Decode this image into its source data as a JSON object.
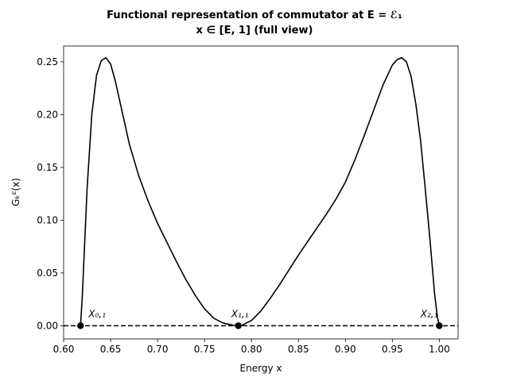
{
  "chart_data": {
    "type": "line",
    "title": "Functional representation of commutator at E = ℰ₁",
    "subtitle": "x ∈ [E, 1] (full view)",
    "xlabel": "Energy x",
    "ylabel": "Gₖᴱ(x)",
    "xlim": [
      0.6,
      1.02
    ],
    "ylim": [
      -0.0125,
      0.265
    ],
    "x_ticks": [
      0.6,
      0.65,
      0.7,
      0.75,
      0.8,
      0.85,
      0.9,
      0.95,
      1.0
    ],
    "x_tick_labels": [
      "0.60",
      "0.65",
      "0.70",
      "0.75",
      "0.80",
      "0.85",
      "0.90",
      "0.95",
      "1.00"
    ],
    "y_ticks": [
      0.0,
      0.05,
      0.1,
      0.15,
      0.2,
      0.25
    ],
    "y_tick_labels": [
      "0.00",
      "0.05",
      "0.10",
      "0.15",
      "0.20",
      "0.25"
    ],
    "grid": false,
    "series": [
      {
        "color": "#000000",
        "style": "solid",
        "x": [
          0.618,
          0.62,
          0.625,
          0.63,
          0.635,
          0.64,
          0.645,
          0.65,
          0.655,
          0.66,
          0.665,
          0.67,
          0.68,
          0.69,
          0.7,
          0.71,
          0.72,
          0.73,
          0.74,
          0.75,
          0.76,
          0.77,
          0.78,
          0.786,
          0.79,
          0.8,
          0.81,
          0.82,
          0.83,
          0.84,
          0.85,
          0.86,
          0.87,
          0.88,
          0.89,
          0.9,
          0.91,
          0.92,
          0.93,
          0.94,
          0.95,
          0.955,
          0.96,
          0.965,
          0.97,
          0.975,
          0.98,
          0.985,
          0.99,
          0.995,
          0.998,
          1.0
        ],
        "y": [
          0.0,
          0.03,
          0.13,
          0.2,
          0.237,
          0.251,
          0.254,
          0.248,
          0.232,
          0.212,
          0.192,
          0.172,
          0.142,
          0.118,
          0.097,
          0.079,
          0.061,
          0.044,
          0.029,
          0.016,
          0.007,
          0.0025,
          0.0006,
          0.0,
          0.0005,
          0.005,
          0.014,
          0.026,
          0.039,
          0.053,
          0.067,
          0.08,
          0.093,
          0.106,
          0.12,
          0.136,
          0.157,
          0.18,
          0.204,
          0.228,
          0.247,
          0.252,
          0.254,
          0.25,
          0.236,
          0.21,
          0.176,
          0.13,
          0.082,
          0.03,
          0.008,
          0.0
        ]
      },
      {
        "color": "#000000",
        "style": "dashed",
        "x": [
          0.6,
          1.02
        ],
        "y": [
          0.0,
          0.0
        ]
      }
    ],
    "points": [
      {
        "label": "X₀,₁",
        "x": 0.618,
        "y": 0.0
      },
      {
        "label": "X₁,₁",
        "x": 0.786,
        "y": 0.0
      },
      {
        "label": "X₂,₁",
        "x": 1.0,
        "y": 0.0
      }
    ]
  }
}
